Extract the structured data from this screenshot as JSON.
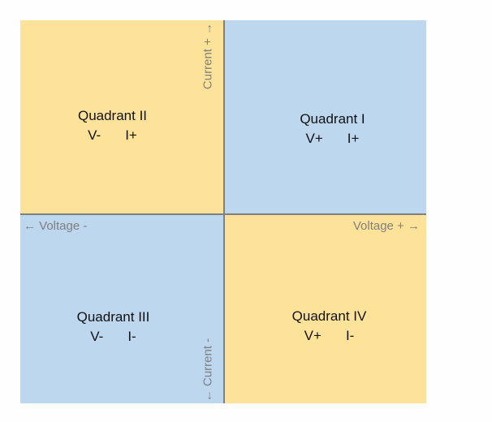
{
  "colors": {
    "page_background": "#fefefe",
    "quadrant_yellow": "#fde399",
    "quadrant_blue": "#bdd7ee",
    "axis_line": "#7f7f7f",
    "axis_label": "#7f7f7f",
    "quadrant_text": "#111111"
  },
  "quadrants": {
    "q1": {
      "title": "Quadrant I",
      "voltage": "V+",
      "current": "I+"
    },
    "q2": {
      "title": "Quadrant II",
      "voltage": "V-",
      "current": "I+"
    },
    "q3": {
      "title": "Quadrant III",
      "voltage": "V-",
      "current": "I-"
    },
    "q4": {
      "title": "Quadrant IV",
      "voltage": "V+",
      "current": "I-"
    }
  },
  "axis_labels": {
    "current_positive": "Current + →",
    "current_negative": "← Current -",
    "voltage_negative": "← Voltage -",
    "voltage_positive": "Voltage + →"
  }
}
